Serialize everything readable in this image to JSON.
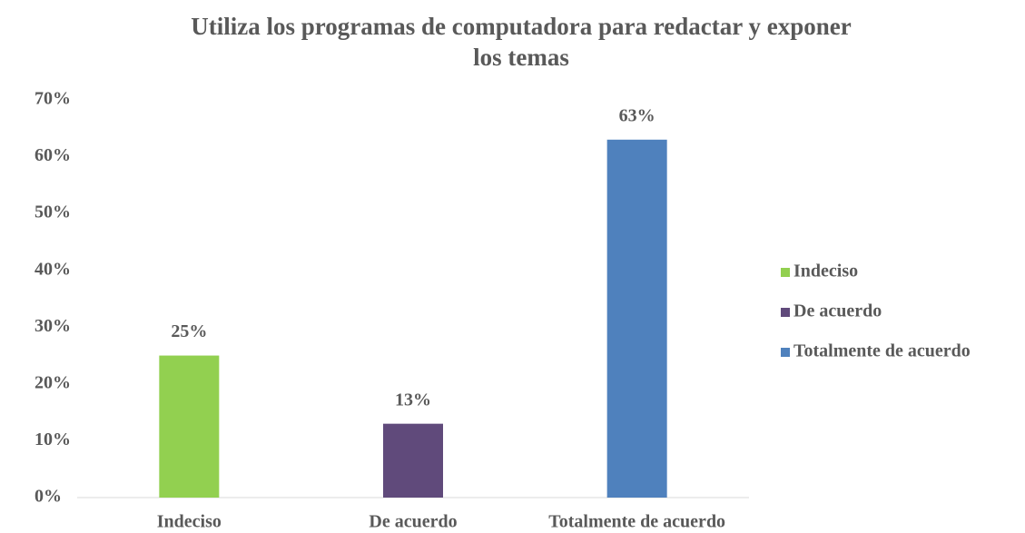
{
  "chart_data": {
    "type": "bar",
    "title": "Utiliza los programas de computadora para redactar y exponer los temas",
    "categories": [
      "Indeciso",
      "De acuerdo",
      "Totalmente de acuerdo"
    ],
    "values": [
      25,
      13,
      63
    ],
    "value_labels": [
      "25%",
      "13%",
      "63%"
    ],
    "colors": [
      "#92d050",
      "#604a7b",
      "#4f81bd"
    ],
    "ylim": [
      0,
      70
    ],
    "yticks": [
      {
        "value": 0,
        "label": "0%"
      },
      {
        "value": 10,
        "label": "10%"
      },
      {
        "value": 20,
        "label": "20%"
      },
      {
        "value": 30,
        "label": "30%"
      },
      {
        "value": 40,
        "label": "40%"
      },
      {
        "value": 50,
        "label": "50%"
      },
      {
        "value": 60,
        "label": "60%"
      },
      {
        "value": 70,
        "label": "70%"
      }
    ],
    "grid": false,
    "legend": "right"
  }
}
